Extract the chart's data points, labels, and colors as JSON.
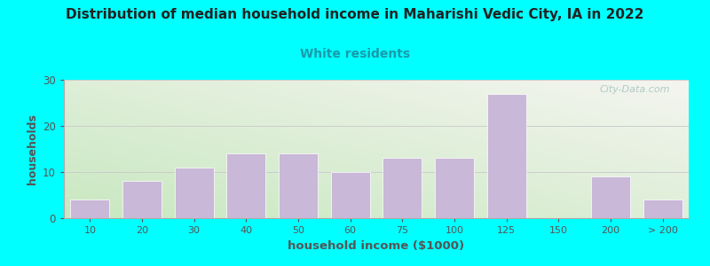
{
  "title": "Distribution of median household income in Maharishi Vedic City, IA in 2022",
  "subtitle": "White residents",
  "xlabel": "household income ($1000)",
  "ylabel": "households",
  "bar_color": "#c9b8d8",
  "bar_edge_color": "#ffffff",
  "background_color": "#00ffff",
  "title_color": "#222222",
  "subtitle_color": "#1a9aaa",
  "axis_label_color": "#555555",
  "tick_color": "#555555",
  "categories": [
    "10",
    "20",
    "30",
    "40",
    "50",
    "60",
    "75",
    "100",
    "125",
    "150",
    "200",
    "> 200"
  ],
  "values": [
    4,
    8,
    11,
    14,
    14,
    10,
    13,
    13,
    27,
    0,
    9,
    4
  ],
  "ylim": [
    0,
    30
  ],
  "yticks": [
    0,
    10,
    20,
    30
  ],
  "watermark": "City-Data.com",
  "grid_color": "#cccccc"
}
